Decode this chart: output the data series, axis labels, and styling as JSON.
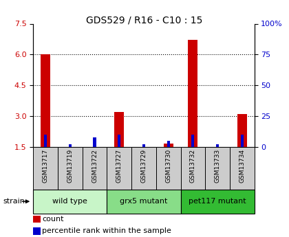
{
  "title": "GDS529 / R16 - C10 : 15",
  "samples": [
    "GSM13717",
    "GSM13719",
    "GSM13722",
    "GSM13727",
    "GSM13729",
    "GSM13730",
    "GSM13732",
    "GSM13733",
    "GSM13734"
  ],
  "count_values": [
    6.0,
    1.5,
    1.5,
    3.2,
    1.5,
    1.65,
    6.7,
    1.5,
    3.1
  ],
  "percentile_values": [
    10,
    2,
    8,
    10,
    2,
    5,
    10,
    2,
    10
  ],
  "ylim_left": [
    1.5,
    7.5
  ],
  "ylim_right": [
    0,
    100
  ],
  "yticks_left": [
    1.5,
    3.0,
    4.5,
    6.0,
    7.5
  ],
  "yticks_right": [
    0,
    25,
    50,
    75,
    100
  ],
  "groups": [
    {
      "label": "wild type",
      "indices": [
        0,
        1,
        2
      ],
      "color": "#c8f5c8"
    },
    {
      "label": "grx5 mutant",
      "indices": [
        3,
        4,
        5
      ],
      "color": "#88dd88"
    },
    {
      "label": "pet117 mutant",
      "indices": [
        6,
        7,
        8
      ],
      "color": "#33bb33"
    }
  ],
  "strain_label": "strain",
  "count_color": "#cc0000",
  "percentile_color": "#0000cc",
  "bar_width": 0.4,
  "percentile_bar_width": 0.12,
  "xlabel_color": "#cc0000",
  "ylabel_right_color": "#0000cc",
  "grid_linestyle": ":",
  "grid_linewidth": 0.8,
  "sample_bg_color": "#cccccc",
  "title_fontsize": 10,
  "tick_fontsize": 8,
  "sample_fontsize": 6.5,
  "group_fontsize": 8,
  "legend_fontsize": 8
}
